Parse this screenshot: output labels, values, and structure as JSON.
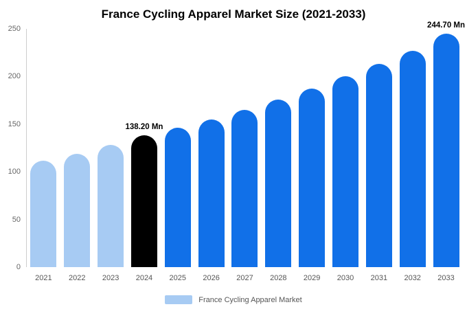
{
  "title": "France Cycling Apparel Market Size (2021-2033)",
  "legend": {
    "label": "France Cycling Apparel Market",
    "swatch_color": "#a7cbf3"
  },
  "colors": {
    "historical": "#a7cbf3",
    "base_year": "#000000",
    "forecast": "#1170e8",
    "axis_line": "#cccccc",
    "tick_text": "#666666"
  },
  "chart_data": {
    "type": "bar",
    "title": "France Cycling Apparel Market Size (2021-2033)",
    "xlabel": "",
    "ylabel": "",
    "unit": "Mn",
    "ylim": [
      0,
      250
    ],
    "y_ticks": [
      0,
      50,
      100,
      150,
      200,
      250
    ],
    "grid": false,
    "legend_position": "bottom",
    "categories": [
      "2021",
      "2022",
      "2023",
      "2024",
      "2025",
      "2026",
      "2027",
      "2028",
      "2029",
      "2030",
      "2031",
      "2032",
      "2033"
    ],
    "values": [
      112,
      119,
      128,
      138.2,
      146,
      155,
      165,
      176,
      187,
      200,
      213,
      227,
      244.7
    ],
    "bar_colors": [
      "#a7cbf3",
      "#a7cbf3",
      "#a7cbf3",
      "#000000",
      "#1170e8",
      "#1170e8",
      "#1170e8",
      "#1170e8",
      "#1170e8",
      "#1170e8",
      "#1170e8",
      "#1170e8",
      "#1170e8"
    ],
    "annotations": {
      "2024": "138.20 Mn",
      "2033": "244.70 Mn"
    },
    "series_name": "France Cycling Apparel Market"
  }
}
